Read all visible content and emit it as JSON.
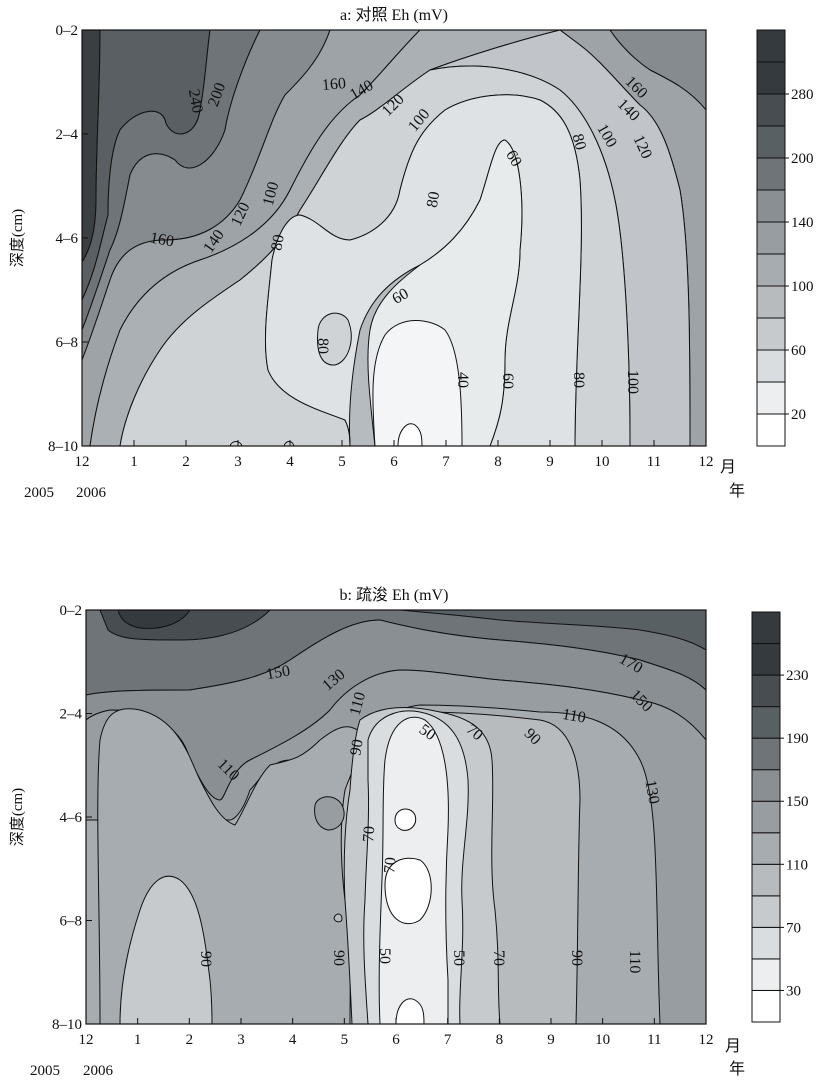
{
  "chart_data": [
    {
      "type": "heatmap",
      "subplot_label": "a:",
      "title": "a: 对照 Eh (mV)",
      "ylabel": "深度(cm)",
      "x_unit_label": "月",
      "year_unit_label": "年",
      "x_ticks": [
        "12",
        "1",
        "2",
        "3",
        "4",
        "5",
        "6",
        "7",
        "8",
        "9",
        "10",
        "11",
        "12"
      ],
      "year_labels": [
        {
          "x": "12",
          "label": "2005"
        },
        {
          "x": "1",
          "label": "2006"
        }
      ],
      "y_ticks": [
        "0–2",
        "2–4",
        "4–6",
        "6–8",
        "8–10"
      ],
      "colorbar_ticks": [
        20,
        60,
        100,
        140,
        200,
        280
      ],
      "levels": [
        20,
        40,
        60,
        80,
        100,
        120,
        140,
        160,
        200,
        240,
        280
      ],
      "contour_labels": [
        "240",
        "200",
        "160",
        "140",
        "120",
        "100",
        "160",
        "140",
        "120",
        "100",
        "80",
        "60",
        "80",
        "60",
        "80",
        "40",
        "60",
        "80",
        "100",
        "160",
        "140",
        "120",
        "100",
        "80"
      ],
      "x": [
        0,
        1,
        2,
        3,
        4,
        5,
        6,
        7,
        8,
        9,
        10,
        11,
        12
      ],
      "y": [
        1,
        3,
        5,
        7,
        9
      ],
      "z": [
        [
          330,
          250,
          230,
          200,
          160,
          150,
          140,
          130,
          120,
          140,
          160,
          200,
          250
        ],
        [
          300,
          230,
          220,
          140,
          120,
          100,
          90,
          80,
          70,
          80,
          110,
          140,
          200
        ],
        [
          280,
          160,
          140,
          100,
          80,
          70,
          65,
          60,
          55,
          60,
          90,
          120,
          170
        ],
        [
          200,
          120,
          100,
          80,
          75,
          65,
          40,
          35,
          50,
          70,
          90,
          110,
          150
        ],
        [
          150,
          110,
          90,
          80,
          70,
          60,
          20,
          30,
          50,
          70,
          90,
          110,
          140
        ]
      ]
    },
    {
      "type": "heatmap",
      "subplot_label": "b:",
      "title": "b: 疏浚 Eh (mV)",
      "ylabel": "深度(cm)",
      "x_unit_label": "月",
      "year_unit_label": "年",
      "x_ticks": [
        "12",
        "1",
        "2",
        "3",
        "4",
        "5",
        "6",
        "7",
        "8",
        "9",
        "10",
        "11",
        "12"
      ],
      "year_labels": [
        {
          "x": "12",
          "label": "2005"
        },
        {
          "x": "1",
          "label": "2006"
        }
      ],
      "y_ticks": [
        "0–2",
        "2–4",
        "4–6",
        "6–8",
        "8–10"
      ],
      "colorbar_ticks": [
        30,
        70,
        110,
        150,
        190,
        230
      ],
      "levels": [
        30,
        50,
        70,
        90,
        110,
        130,
        150,
        170,
        190,
        210,
        230
      ],
      "contour_labels": [
        "150",
        "130",
        "110",
        "90",
        "70",
        "50",
        "70",
        "90",
        "110",
        "170",
        "150",
        "110",
        "130",
        "70",
        "50",
        "90",
        "90",
        "50",
        "70",
        "90",
        "110"
      ],
      "x": [
        0,
        1,
        2,
        3,
        4,
        5,
        6,
        7,
        8,
        9,
        10,
        11,
        12
      ],
      "y": [
        1,
        3,
        5,
        7,
        9
      ],
      "z": [
        [
          190,
          210,
          180,
          160,
          150,
          140,
          130,
          130,
          140,
          150,
          160,
          180,
          190
        ],
        [
          140,
          110,
          120,
          130,
          130,
          120,
          70,
          50,
          70,
          100,
          120,
          150,
          160
        ],
        [
          130,
          100,
          100,
          110,
          120,
          100,
          45,
          40,
          70,
          100,
          120,
          140,
          150
        ],
        [
          130,
          90,
          80,
          100,
          100,
          80,
          35,
          40,
          70,
          100,
          120,
          140,
          150
        ],
        [
          130,
          90,
          80,
          100,
          100,
          80,
          40,
          50,
          70,
          100,
          120,
          130,
          140
        ]
      ]
    }
  ]
}
